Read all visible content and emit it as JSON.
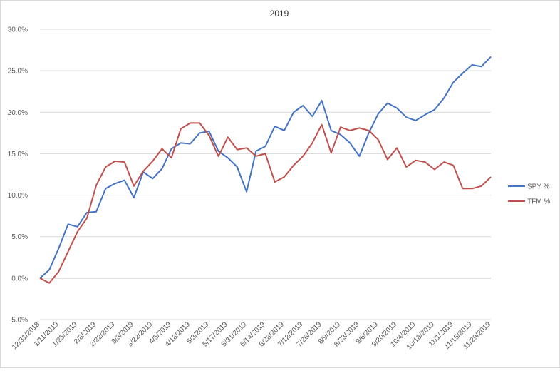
{
  "chart_data": {
    "type": "line",
    "title": "2019",
    "xlabel": "",
    "ylabel": "",
    "ylim": [
      -0.05,
      0.3
    ],
    "y_ticks": [
      -0.05,
      0.0,
      0.05,
      0.1,
      0.15,
      0.2,
      0.25,
      0.3
    ],
    "y_tick_labels": [
      "-5.0%",
      "0.0%",
      "5.0%",
      "10.0%",
      "15.0%",
      "20.0%",
      "25.0%",
      "30.0%"
    ],
    "gridlines": true,
    "legend_position": "right",
    "x_tick_labels": [
      "12/31/2018",
      "1/11/2019",
      "1/25/2019",
      "2/8/2019",
      "2/22/2019",
      "3/8/2019",
      "3/22/2019",
      "4/5/2019",
      "4/18/2019",
      "5/3/2019",
      "5/17/2019",
      "5/31/2019",
      "6/14/2019",
      "6/28/2019",
      "7/12/2019",
      "7/26/2019",
      "8/9/2019",
      "8/23/2019",
      "9/6/2019",
      "9/20/2019",
      "10/4/2019",
      "10/18/2019",
      "11/1/2019",
      "11/15/2019",
      "11/29/2019"
    ],
    "series": [
      {
        "name": "SPY %",
        "color": "#4472c4",
        "values": [
          0.0,
          0.01,
          0.036,
          0.065,
          0.062,
          0.079,
          0.08,
          0.108,
          0.114,
          0.118,
          0.097,
          0.128,
          0.12,
          0.132,
          0.156,
          0.163,
          0.162,
          0.175,
          0.177,
          0.153,
          0.145,
          0.134,
          0.104,
          0.153,
          0.159,
          0.183,
          0.178,
          0.2,
          0.208,
          0.195,
          0.214,
          0.178,
          0.173,
          0.163,
          0.147,
          0.175,
          0.198,
          0.211,
          0.205,
          0.194,
          0.19,
          0.197,
          0.203,
          0.217,
          0.236,
          0.247,
          0.257,
          0.255,
          0.267
        ]
      },
      {
        "name": "TFM %",
        "color": "#c0504d",
        "values": [
          0.0,
          -0.006,
          0.008,
          0.032,
          0.056,
          0.072,
          0.112,
          0.134,
          0.141,
          0.14,
          0.111,
          0.129,
          0.141,
          0.156,
          0.145,
          0.18,
          0.187,
          0.187,
          0.172,
          0.147,
          0.17,
          0.155,
          0.157,
          0.147,
          0.15,
          0.116,
          0.122,
          0.136,
          0.147,
          0.163,
          0.185,
          0.151,
          0.182,
          0.178,
          0.181,
          0.178,
          0.167,
          0.143,
          0.157,
          0.134,
          0.142,
          0.14,
          0.131,
          0.14,
          0.136,
          0.108,
          0.108,
          0.111,
          0.122
        ]
      }
    ]
  }
}
